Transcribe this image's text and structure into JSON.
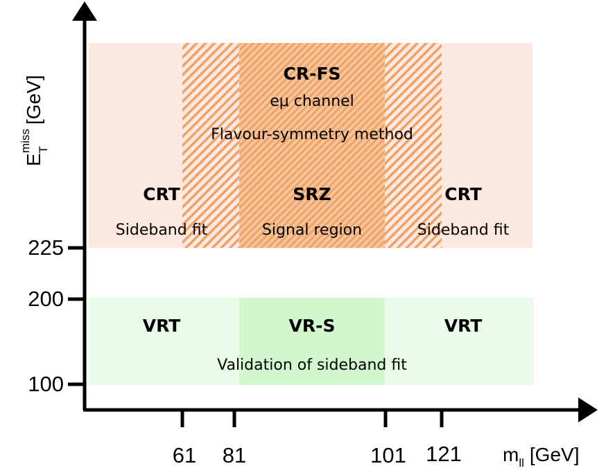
{
  "y_axis": {
    "symbol": "E",
    "subscript": "T",
    "superscript": "miss",
    "unit": "[GeV]",
    "ticks": [
      225,
      200,
      100
    ]
  },
  "x_axis": {
    "symbol": "m",
    "subscript": "ll",
    "unit": "[GeV]",
    "ticks": [
      61,
      81,
      101,
      121
    ]
  },
  "regions": {
    "cr_fs": {
      "name": "CR-FS",
      "line1": "eμ channel",
      "line2": "Flavour-symmetry method"
    },
    "crt_left": {
      "name": "CRT",
      "desc": "Sideband fit"
    },
    "srz": {
      "name": "SRZ",
      "desc": "Signal region"
    },
    "crt_right": {
      "name": "CRT",
      "desc": "Sideband fit"
    },
    "vrt_left": {
      "name": "VRT"
    },
    "vr_s": {
      "name": "VR-S"
    },
    "vrt_right": {
      "name": "VRT"
    },
    "validation": "Validation of sideband fit"
  }
}
